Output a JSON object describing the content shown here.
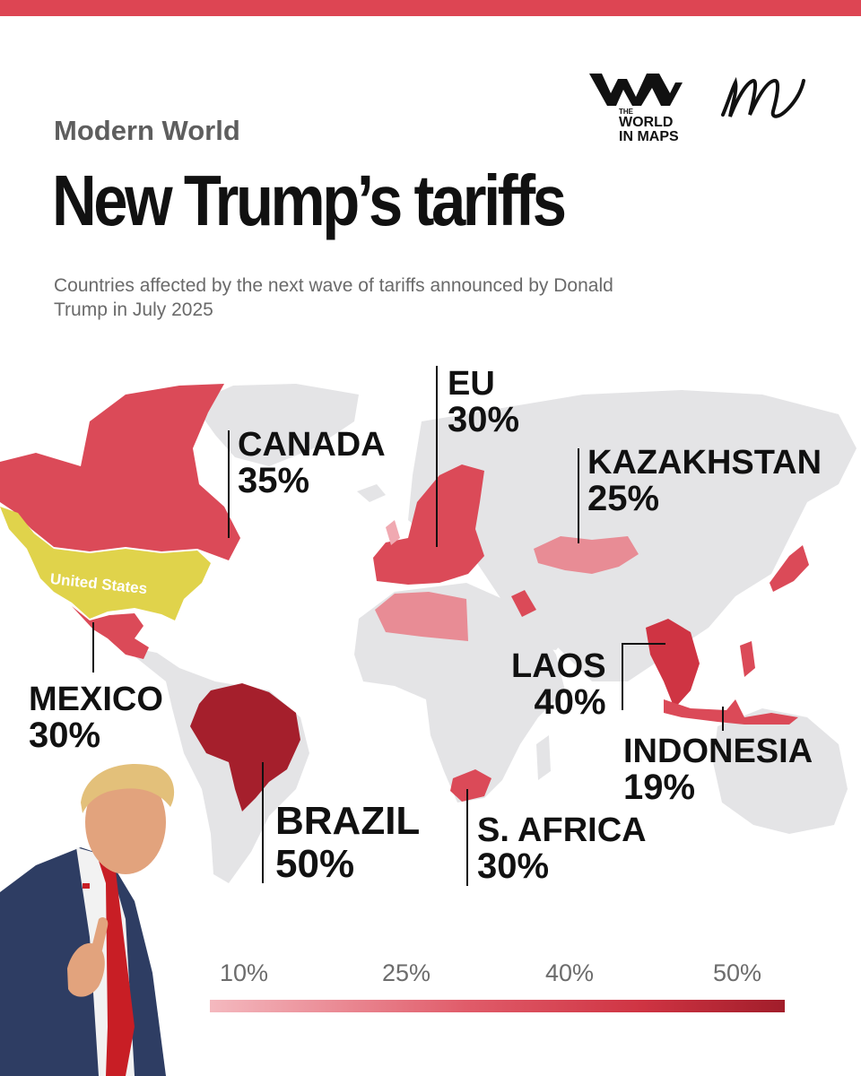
{
  "header": {
    "kicker": "Modern World",
    "title": "New Trump’s tariffs",
    "subtitle": "Countries affected by the next wave of tariffs announced by Donald Trump in July 2025"
  },
  "logo": {
    "brand_small": "THE",
    "brand_line1": "WORLD",
    "brand_line2": "IN MAPS"
  },
  "map": {
    "us_label": "United States",
    "callouts": [
      {
        "country": "CANADA",
        "tariff": "35%"
      },
      {
        "country": "EU",
        "tariff": "30%"
      },
      {
        "country": "KAZAKHSTAN",
        "tariff": "25%"
      },
      {
        "country": "MEXICO",
        "tariff": "30%"
      },
      {
        "country": "LAOS",
        "tariff": "40%"
      },
      {
        "country": "INDONESIA",
        "tariff": "19%"
      },
      {
        "country": "BRAZIL",
        "tariff": "50%"
      },
      {
        "country": "S. AFRICA",
        "tariff": "30%"
      }
    ]
  },
  "legend": {
    "ticks": [
      "10%",
      "25%",
      "40%",
      "50%"
    ]
  },
  "colors": {
    "accent": "#dd4553",
    "land": "#e4e4e6",
    "usa": "#e0d34b",
    "tariff_mid": "#db4a58",
    "tariff_low": "#e88c95",
    "tariff_high": "#a51f2c"
  }
}
